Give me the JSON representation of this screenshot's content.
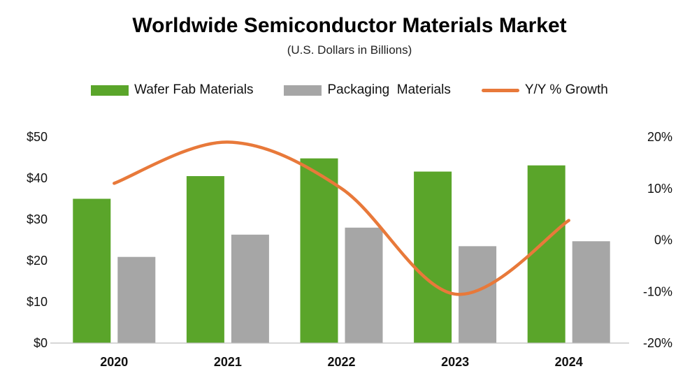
{
  "chart_data": {
    "type": "bar",
    "title": "Worldwide Semiconductor Materials Market",
    "subtitle": "(U.S. Dollars in Billions)",
    "categories": [
      "2020",
      "2021",
      "2022",
      "2023",
      "2024"
    ],
    "series": [
      {
        "name": "Wafer Fab Materials",
        "type": "bar",
        "axis": "left",
        "color": "#5aa52a",
        "values": [
          35.0,
          40.5,
          44.8,
          41.6,
          43.1
        ]
      },
      {
        "name": "Packaging  Materials",
        "type": "bar",
        "axis": "left",
        "color": "#a6a6a6",
        "values": [
          20.9,
          26.3,
          28.0,
          23.5,
          24.7
        ]
      },
      {
        "name": "Y/Y % Growth",
        "type": "line",
        "axis": "right",
        "color": "#e8793a",
        "values": [
          11.0,
          19.0,
          10.0,
          -10.5,
          3.8
        ]
      }
    ],
    "y_left": {
      "ylim": [
        0,
        50
      ],
      "ticks": [
        "$0",
        "$10",
        "$20",
        "$30",
        "$40",
        "$50"
      ],
      "tick_values": [
        0,
        10,
        20,
        30,
        40,
        50
      ]
    },
    "y_right": {
      "ylim": [
        -20,
        20
      ],
      "ticks": [
        "-20%",
        "-10%",
        "0%",
        "10%",
        "20%"
      ],
      "tick_values": [
        -20,
        -10,
        0,
        10,
        20
      ]
    },
    "grid": false,
    "legend_position": "top-center"
  }
}
